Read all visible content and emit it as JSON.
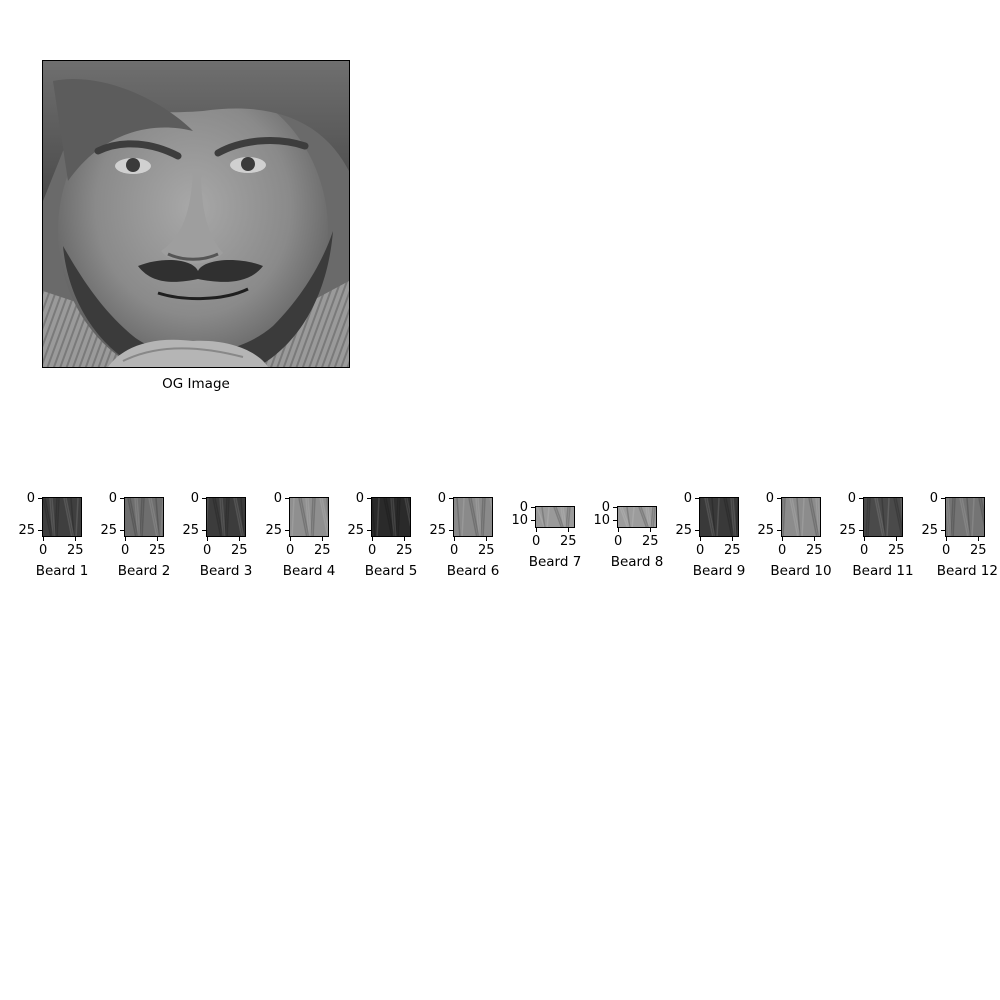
{
  "original": {
    "label": "OG Image"
  },
  "patches": [
    {
      "label": "Beard 1",
      "shade": "#3f3f3f",
      "xticks": [
        "0",
        "25"
      ],
      "yticks": [
        "0",
        "25"
      ]
    },
    {
      "label": "Beard 2",
      "shade": "#6e6e6e",
      "xticks": [
        "0",
        "25"
      ],
      "yticks": [
        "0",
        "25"
      ]
    },
    {
      "label": "Beard 3",
      "shade": "#3c3c3c",
      "xticks": [
        "0",
        "25"
      ],
      "yticks": [
        "0",
        "25"
      ]
    },
    {
      "label": "Beard 4",
      "shade": "#8f8f8f",
      "xticks": [
        "0",
        "25"
      ],
      "yticks": [
        "0",
        "25"
      ]
    },
    {
      "label": "Beard 5",
      "shade": "#2a2a2a",
      "xticks": [
        "0",
        "25"
      ],
      "yticks": [
        "0",
        "25"
      ]
    },
    {
      "label": "Beard 6",
      "shade": "#8a8a8a",
      "xticks": [
        "0",
        "25"
      ],
      "yticks": [
        "0",
        "25"
      ]
    },
    {
      "label": "Beard 7",
      "shade": "#9a9a9a",
      "xticks": [
        "0",
        "25"
      ],
      "yticks": [
        "0",
        "10"
      ]
    },
    {
      "label": "Beard 8",
      "shade": "#9c9c9c",
      "xticks": [
        "0",
        "25"
      ],
      "yticks": [
        "0",
        "10"
      ]
    },
    {
      "label": "Beard 9",
      "shade": "#393939",
      "xticks": [
        "0",
        "25"
      ],
      "yticks": [
        "0",
        "25"
      ]
    },
    {
      "label": "Beard 10",
      "shade": "#8c8c8c",
      "xticks": [
        "0",
        "25"
      ],
      "yticks": [
        "0",
        "25"
      ]
    },
    {
      "label": "Beard 11",
      "shade": "#4a4a4a",
      "xticks": [
        "0",
        "25"
      ],
      "yticks": [
        "0",
        "25"
      ]
    },
    {
      "label": "Beard 12",
      "shade": "#747474",
      "xticks": [
        "0",
        "25"
      ],
      "yticks": [
        "0",
        "25"
      ]
    }
  ]
}
